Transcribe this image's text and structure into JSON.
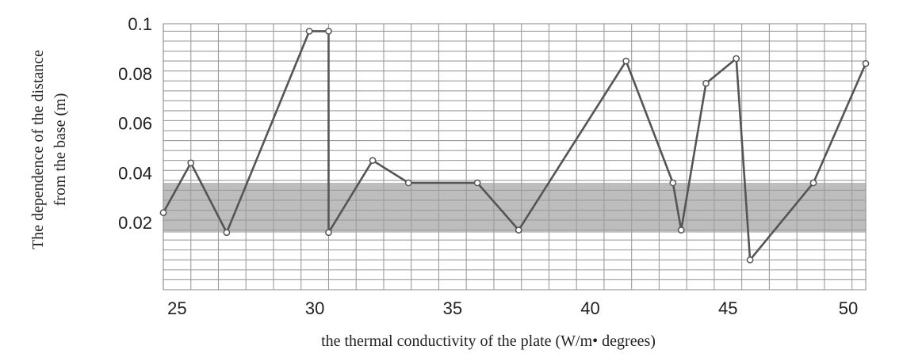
{
  "chart_data": {
    "type": "line",
    "title": "",
    "xlabel": "the thermal conductivity of the plate (W/m• degrees)",
    "ylabel_line1": "The dependence of the distance",
    "ylabel_line2": "from the base (m)",
    "xlim": [
      24.5,
      50
    ],
    "ylim": [
      -0.007,
      0.1
    ],
    "x_ticks": [
      25,
      30,
      35,
      40,
      45,
      50
    ],
    "x_tick_labels": [
      "25",
      "30",
      "35",
      "40",
      "45",
      "50"
    ],
    "y_ticks": [
      0.02,
      0.04,
      0.06,
      0.08,
      0.1
    ],
    "y_tick_labels": [
      "0.02",
      "0.04",
      "0.06",
      "0.08",
      "0.1"
    ],
    "grid": true,
    "shaded_band": {
      "y_min": 0.016,
      "y_max": 0.036
    },
    "series": [
      {
        "x": [
          24.5,
          25.5,
          26.8,
          29.8,
          30.5,
          30.5,
          32.1,
          33.4,
          35.9,
          37.4,
          41.3,
          43.0,
          43.3,
          44.2,
          45.3,
          45.8,
          48.1,
          50.0
        ],
        "y": [
          0.024,
          0.044,
          0.016,
          0.097,
          0.097,
          0.016,
          0.045,
          0.036,
          0.036,
          0.017,
          0.085,
          0.036,
          0.017,
          0.076,
          0.086,
          0.005,
          0.036,
          0.084
        ]
      }
    ]
  }
}
